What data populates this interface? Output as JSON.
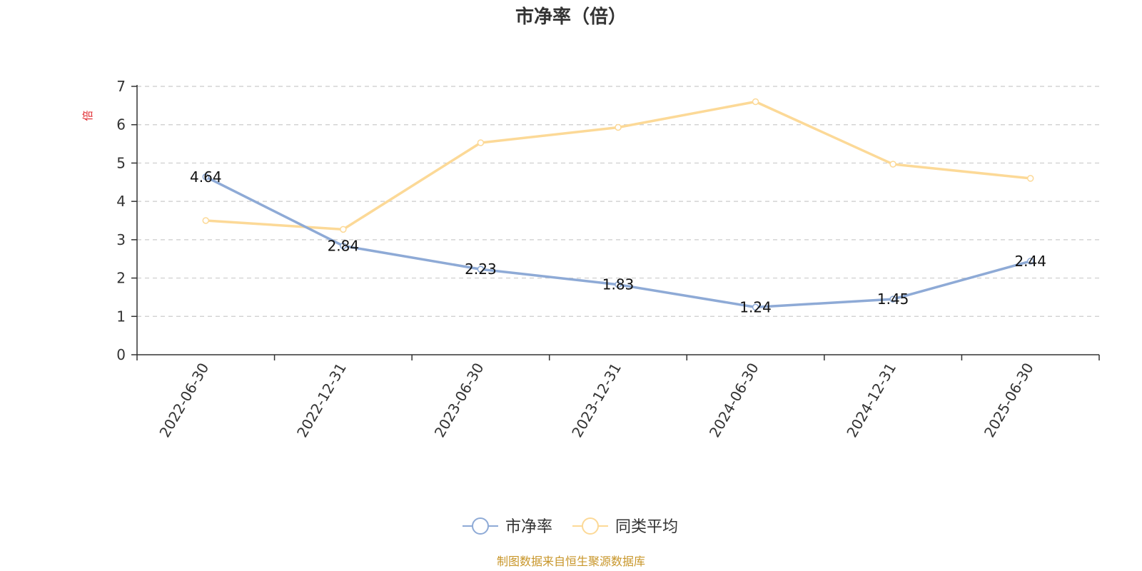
{
  "colors": {
    "series_pb": "#8eaad6",
    "series_avg": "#fcd997",
    "unit": "#e0282e",
    "source": "#c8962a",
    "axis": "#333333",
    "grid": "#cccccc"
  },
  "chart_data": {
    "type": "line",
    "title": "市净率（倍）",
    "y_unit": "倍",
    "categories": [
      "2022-06-30",
      "2022-12-31",
      "2023-06-30",
      "2023-12-31",
      "2024-06-30",
      "2024-12-31",
      "2025-06-30"
    ],
    "ylim": [
      0,
      7
    ],
    "yticks": [
      "0",
      "1",
      "2",
      "3",
      "4",
      "5",
      "6",
      "7"
    ],
    "grid": "horizontal dashed",
    "legend_position": "bottom-center",
    "series": [
      {
        "name": "市净率",
        "values": [
          4.64,
          2.84,
          2.23,
          1.83,
          1.24,
          1.45,
          2.44
        ],
        "labels": [
          "4.64",
          "2.84",
          "2.23",
          "1.83",
          "1.24",
          "1.45",
          "2.44"
        ]
      },
      {
        "name": "同类平均",
        "values": [
          3.5,
          3.27,
          5.53,
          5.93,
          6.6,
          4.97,
          4.6
        ]
      }
    ]
  },
  "source_note": "制图数据来自恒生聚源数据库"
}
